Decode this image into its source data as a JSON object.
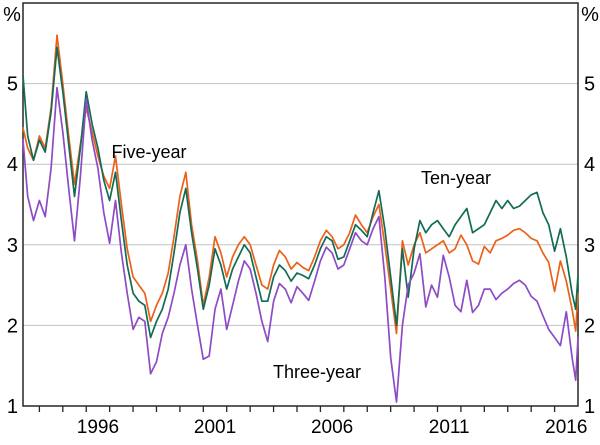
{
  "chart_data": {
    "type": "line",
    "unit": "%",
    "ylim": [
      1,
      6
    ],
    "xlim": [
      1993.3,
      2017.0
    ],
    "y_tick_values": [
      1,
      2,
      3,
      4,
      5
    ],
    "y_tick_labels": [
      "1",
      "2",
      "3",
      "4",
      "5"
    ],
    "grid_values": [
      2,
      3,
      4,
      5
    ],
    "x_tick_labels": [
      "1996",
      "2001",
      "2006",
      "2011",
      "2016"
    ],
    "x_tick_label_positions": [
      1996.5,
      2001.5,
      2006.5,
      2011.5,
      2016.5
    ],
    "minor_tick_years": [
      1994,
      1995,
      1996,
      1997,
      1998,
      1999,
      2000,
      2001,
      2002,
      2003,
      2004,
      2005,
      2006,
      2007,
      2008,
      2009,
      2010,
      2011,
      2012,
      2013,
      2014,
      2015,
      2016
    ],
    "x": [
      1993.3,
      1993.5,
      1993.75,
      1994.0,
      1994.25,
      1994.5,
      1994.75,
      1995.0,
      1995.25,
      1995.5,
      1995.75,
      1996.0,
      1996.25,
      1996.5,
      1996.75,
      1997.0,
      1997.25,
      1997.5,
      1997.75,
      1998.0,
      1998.25,
      1998.5,
      1998.75,
      1999.0,
      1999.25,
      1999.5,
      1999.75,
      2000.0,
      2000.25,
      2000.5,
      2000.75,
      2001.0,
      2001.25,
      2001.5,
      2001.75,
      2002.0,
      2002.25,
      2002.5,
      2002.75,
      2003.0,
      2003.25,
      2003.5,
      2003.75,
      2004.0,
      2004.25,
      2004.5,
      2004.75,
      2005.0,
      2005.25,
      2005.5,
      2005.75,
      2006.0,
      2006.25,
      2006.5,
      2006.75,
      2007.0,
      2007.25,
      2007.5,
      2007.75,
      2008.0,
      2008.25,
      2008.5,
      2008.75,
      2009.0,
      2009.25,
      2009.5,
      2009.75,
      2010.0,
      2010.25,
      2010.5,
      2010.75,
      2011.0,
      2011.25,
      2011.5,
      2011.75,
      2012.0,
      2012.25,
      2012.5,
      2012.75,
      2013.0,
      2013.25,
      2013.5,
      2013.75,
      2014.0,
      2014.25,
      2014.5,
      2014.75,
      2015.0,
      2015.25,
      2015.5,
      2015.75,
      2016.0,
      2016.25,
      2016.5,
      2016.75,
      2016.9,
      2017.0
    ],
    "series": [
      {
        "name": "Five-year",
        "color": "#EB6119",
        "label": {
          "x": 149,
          "y": 158
        },
        "values": [
          4.45,
          4.2,
          4.05,
          4.35,
          4.2,
          4.7,
          5.6,
          5.0,
          4.35,
          3.75,
          4.25,
          4.7,
          4.4,
          4.1,
          3.85,
          3.7,
          4.1,
          3.5,
          2.95,
          2.6,
          2.5,
          2.4,
          2.05,
          2.25,
          2.4,
          2.65,
          3.1,
          3.6,
          3.9,
          3.25,
          2.8,
          2.25,
          2.6,
          3.1,
          2.9,
          2.6,
          2.85,
          3.0,
          3.1,
          3.0,
          2.75,
          2.5,
          2.45,
          2.75,
          2.93,
          2.85,
          2.7,
          2.78,
          2.72,
          2.68,
          2.85,
          3.05,
          3.18,
          3.1,
          2.95,
          3.0,
          3.15,
          3.37,
          3.25,
          3.15,
          3.35,
          3.5,
          3.0,
          2.45,
          1.9,
          3.05,
          2.75,
          3.0,
          3.15,
          2.9,
          2.95,
          3.0,
          3.05,
          2.9,
          2.95,
          3.12,
          3.0,
          2.8,
          2.76,
          2.98,
          2.9,
          3.05,
          3.08,
          3.12,
          3.18,
          3.2,
          3.15,
          3.08,
          3.05,
          2.9,
          2.78,
          2.42,
          2.8,
          2.55,
          2.2,
          1.93,
          2.4
        ]
      },
      {
        "name": "Ten-year",
        "color": "#126B55",
        "label": {
          "x": 456,
          "y": 184
        },
        "values": [
          5.1,
          4.35,
          4.05,
          4.3,
          4.15,
          4.65,
          5.45,
          4.9,
          4.25,
          3.6,
          4.2,
          4.9,
          4.5,
          4.2,
          3.8,
          3.55,
          3.9,
          3.3,
          2.75,
          2.4,
          2.3,
          2.25,
          1.85,
          2.05,
          2.2,
          2.45,
          2.9,
          3.4,
          3.7,
          3.15,
          2.7,
          2.2,
          2.5,
          2.95,
          2.75,
          2.45,
          2.7,
          2.85,
          3.0,
          2.9,
          2.6,
          2.3,
          2.3,
          2.6,
          2.75,
          2.68,
          2.55,
          2.65,
          2.62,
          2.58,
          2.75,
          2.95,
          3.1,
          3.05,
          2.82,
          2.85,
          3.05,
          3.25,
          3.18,
          3.1,
          3.4,
          3.67,
          3.2,
          2.6,
          2.0,
          2.95,
          2.35,
          2.95,
          3.3,
          3.15,
          3.25,
          3.3,
          3.2,
          3.1,
          3.25,
          3.35,
          3.45,
          3.15,
          3.2,
          3.25,
          3.4,
          3.55,
          3.45,
          3.55,
          3.45,
          3.48,
          3.55,
          3.62,
          3.65,
          3.4,
          3.25,
          2.92,
          3.2,
          2.85,
          2.4,
          2.2,
          2.62
        ]
      },
      {
        "name": "Three-year",
        "color": "#8E4BC6",
        "label": {
          "x": 317,
          "y": 378
        },
        "values": [
          4.3,
          3.6,
          3.3,
          3.55,
          3.35,
          3.95,
          4.95,
          4.4,
          3.7,
          3.05,
          3.85,
          4.8,
          4.3,
          3.95,
          3.4,
          3.02,
          3.55,
          2.9,
          2.4,
          1.95,
          2.1,
          2.05,
          1.4,
          1.55,
          1.9,
          2.1,
          2.4,
          2.75,
          3.0,
          2.45,
          2.0,
          1.58,
          1.62,
          2.2,
          2.45,
          1.95,
          2.25,
          2.55,
          2.8,
          2.7,
          2.4,
          2.05,
          1.8,
          2.3,
          2.52,
          2.45,
          2.28,
          2.48,
          2.4,
          2.31,
          2.55,
          2.8,
          2.97,
          2.9,
          2.7,
          2.75,
          2.95,
          3.15,
          3.05,
          3.0,
          3.2,
          3.35,
          2.6,
          1.6,
          1.05,
          2.0,
          2.5,
          2.65,
          2.89,
          2.23,
          2.5,
          2.35,
          2.87,
          2.6,
          2.25,
          2.17,
          2.56,
          2.16,
          2.25,
          2.45,
          2.45,
          2.32,
          2.4,
          2.45,
          2.52,
          2.56,
          2.5,
          2.36,
          2.3,
          2.12,
          1.95,
          1.85,
          1.75,
          2.17,
          1.6,
          1.32,
          1.85
        ]
      }
    ],
    "style": {
      "grid_color": "#c2c2c2",
      "axis_color": "#262626",
      "background": "#ffffff"
    }
  }
}
